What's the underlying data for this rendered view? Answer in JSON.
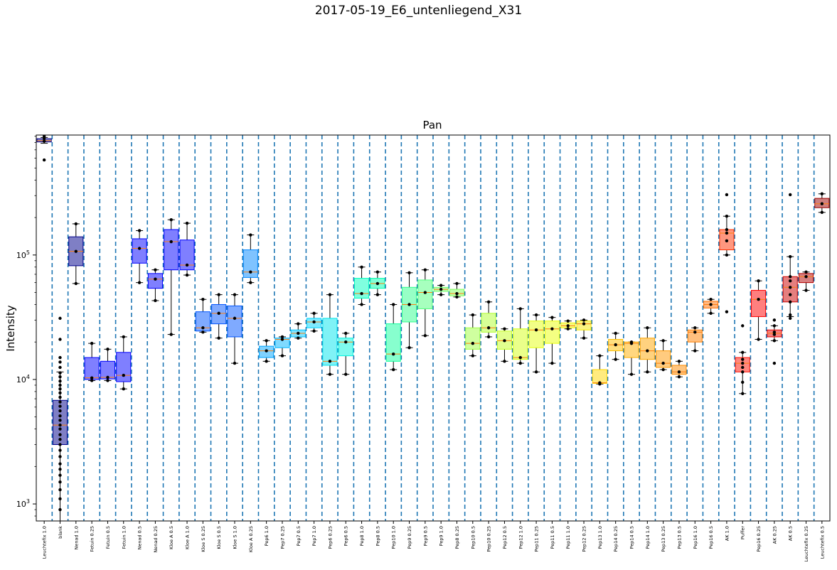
{
  "figure": {
    "suptitle": "2017-05-19_E6_untenliegend_X31"
  },
  "chart_data": {
    "type": "box",
    "title": "Pan",
    "ylabel": "Intensity",
    "xlabel": "",
    "yscale": "log",
    "ylim": [
      730,
      920000
    ],
    "y_tick_labels": [
      "10^3",
      "10^4",
      "10^5"
    ],
    "y_ticks": [
      1000,
      10000,
      100000
    ],
    "grid": false,
    "separators": "dashed vertical lines between categories",
    "separator_color": "#1f77b4",
    "median_color": "#ff7f0e",
    "categories": [
      {
        "label": "Leuchtefix 1.0",
        "color": "#00008b",
        "q1": 810000,
        "med": 830000,
        "q3": 860000,
        "wlo": 790000,
        "whi": 880000,
        "points": [
          580000,
          820000,
          860000,
          900000
        ]
      },
      {
        "label": "blank",
        "color": "#00008b",
        "q1": 3000,
        "med": 4300,
        "q3": 6800,
        "wlo": 730,
        "whi": 11500,
        "points": [
          900,
          1100,
          1300,
          1500,
          1700,
          1900,
          2100,
          2400,
          2700,
          3000,
          3300,
          3600,
          4000,
          4300,
          4700,
          5100,
          5600,
          6100,
          6600,
          7200,
          7800,
          8400,
          9000,
          9700,
          10500,
          11300,
          12500,
          13800,
          15000,
          21000,
          31000
        ]
      },
      {
        "label": "Nenad 1.0",
        "color": "#00008b",
        "q1": 82000,
        "med": 107000,
        "q3": 140000,
        "wlo": 59000,
        "whi": 178000,
        "points": [
          59000,
          107000,
          178000
        ]
      },
      {
        "label": "Fetuin 0.25",
        "color": "#0000ff",
        "q1": 10000,
        "med": 10300,
        "q3": 15000,
        "wlo": 9800,
        "whi": 19500,
        "points": [
          9800,
          10300,
          19500
        ]
      },
      {
        "label": "Fetuin 0.5",
        "color": "#0000ff",
        "q1": 10100,
        "med": 10400,
        "q3": 14000,
        "wlo": 9800,
        "whi": 17500,
        "points": [
          9800,
          10400,
          17500
        ]
      },
      {
        "label": "Fetuin 1.0",
        "color": "#0000ff",
        "q1": 9600,
        "med": 10800,
        "q3": 16500,
        "wlo": 8400,
        "whi": 22000,
        "points": [
          8400,
          10800,
          22000
        ]
      },
      {
        "label": "Nenad 0.5",
        "color": "#0000ff",
        "q1": 86000,
        "med": 113000,
        "q3": 135000,
        "wlo": 60000,
        "whi": 157000,
        "points": [
          60000,
          113000,
          157000
        ]
      },
      {
        "label": "Nenad 0.25",
        "color": "#0000ff",
        "q1": 54000,
        "med": 64000,
        "q3": 71000,
        "wlo": 43000,
        "whi": 76000,
        "points": [
          43000,
          64000,
          76000
        ]
      },
      {
        "label": "Kloe A 0.5",
        "color": "#0000ff",
        "q1": 76000,
        "med": 128000,
        "q3": 160000,
        "wlo": 23000,
        "whi": 192000,
        "points": [
          23000,
          128000,
          192000
        ]
      },
      {
        "label": "Kloe A 1.0",
        "color": "#0000ff",
        "q1": 76000,
        "med": 83000,
        "q3": 132000,
        "wlo": 69000,
        "whi": 180000,
        "points": [
          69000,
          83000,
          180000
        ]
      },
      {
        "label": "Kloe S 0.25",
        "color": "#0055ff",
        "q1": 24500,
        "med": 26000,
        "q3": 35000,
        "wlo": 24000,
        "whi": 44000,
        "points": [
          24000,
          26000,
          44000
        ]
      },
      {
        "label": "Kloe S 0.5",
        "color": "#0055ff",
        "q1": 28000,
        "med": 34000,
        "q3": 40000,
        "wlo": 21500,
        "whi": 48000,
        "points": [
          21500,
          34000,
          48000
        ]
      },
      {
        "label": "Kloe S 1.0",
        "color": "#0055ff",
        "q1": 22000,
        "med": 31000,
        "q3": 39000,
        "wlo": 13500,
        "whi": 48000,
        "points": [
          13500,
          31000,
          48000
        ]
      },
      {
        "label": "Kloe A 0.25",
        "color": "#0088ff",
        "q1": 66000,
        "med": 73000,
        "q3": 110000,
        "wlo": 60000,
        "whi": 145000,
        "points": [
          60000,
          73000,
          145000
        ]
      },
      {
        "label": "Pep6 1.0",
        "color": "#00a5ff",
        "q1": 15000,
        "med": 17000,
        "q3": 18500,
        "wlo": 14000,
        "whi": 20500,
        "points": [
          14000,
          17000,
          20500
        ]
      },
      {
        "label": "Pep7 0.25",
        "color": "#00b5ff",
        "q1": 18000,
        "med": 21000,
        "q3": 21500,
        "wlo": 15500,
        "whi": 22000,
        "points": [
          15500,
          21000,
          22000
        ]
      },
      {
        "label": "Pep7 0.5",
        "color": "#00c5ff",
        "q1": 22000,
        "med": 23500,
        "q3": 25000,
        "wlo": 21500,
        "whi": 28000,
        "points": [
          21500,
          23500,
          28000
        ]
      },
      {
        "label": "Pep7 1.0",
        "color": "#00d5ff",
        "q1": 26000,
        "med": 29000,
        "q3": 31000,
        "wlo": 24500,
        "whi": 34000,
        "points": [
          24500,
          29000,
          34000
        ]
      },
      {
        "label": "Pep6 0.25",
        "color": "#00e5ee",
        "q1": 13000,
        "med": 14000,
        "q3": 31000,
        "wlo": 11000,
        "whi": 48000,
        "points": [
          11000,
          14000,
          48000
        ]
      },
      {
        "label": "Pep6 0.5",
        "color": "#00f5e0",
        "q1": 15500,
        "med": 20000,
        "q3": 21500,
        "wlo": 11000,
        "whi": 23500,
        "points": [
          11000,
          20000,
          23500
        ]
      },
      {
        "label": "Pep8 1.0",
        "color": "#00ffc0",
        "q1": 45000,
        "med": 49000,
        "q3": 65000,
        "wlo": 40000,
        "whi": 80000,
        "points": [
          40000,
          49000,
          80000
        ]
      },
      {
        "label": "Pep8 0.5",
        "color": "#00ffb0",
        "q1": 54000,
        "med": 59000,
        "q3": 65000,
        "wlo": 48000,
        "whi": 73000,
        "points": [
          48000,
          59000,
          73000
        ]
      },
      {
        "label": "Pep10 1.0",
        "color": "#10ff9e",
        "q1": 14000,
        "med": 16000,
        "q3": 28000,
        "wlo": 12000,
        "whi": 40000,
        "points": [
          12000,
          16000,
          40000
        ]
      },
      {
        "label": "Pep9 0.25",
        "color": "#30ff8e",
        "q1": 29000,
        "med": 40000,
        "q3": 55000,
        "wlo": 18000,
        "whi": 72000,
        "points": [
          18000,
          40000,
          72000
        ]
      },
      {
        "label": "Pep9 0.5",
        "color": "#50ff7e",
        "q1": 37000,
        "med": 50000,
        "q3": 63000,
        "wlo": 22500,
        "whi": 76000,
        "points": [
          22500,
          50000,
          76000
        ]
      },
      {
        "label": "Pep9 1.0",
        "color": "#70ff6e",
        "q1": 51000,
        "med": 53000,
        "q3": 55000,
        "wlo": 48000,
        "whi": 57000,
        "points": [
          48000,
          53000,
          57000
        ]
      },
      {
        "label": "Pep8 0.25",
        "color": "#80ff5e",
        "q1": 47000,
        "med": 49000,
        "q3": 53000,
        "wlo": 46000,
        "whi": 59000,
        "points": [
          46000,
          49000,
          59000
        ]
      },
      {
        "label": "Pep10 0.5",
        "color": "#a0ff40",
        "q1": 17500,
        "med": 19500,
        "q3": 26000,
        "wlo": 15500,
        "whi": 33000,
        "points": [
          15500,
          19500,
          33000
        ]
      },
      {
        "label": "Pep10 0.25",
        "color": "#b0ff30",
        "q1": 24000,
        "med": 26000,
        "q3": 34000,
        "wlo": 22000,
        "whi": 42000,
        "points": [
          22000,
          26000,
          42000
        ]
      },
      {
        "label": "Pep12 0.5",
        "color": "#c5ff20",
        "q1": 17500,
        "med": 20500,
        "q3": 24500,
        "wlo": 14000,
        "whi": 25500,
        "points": [
          14000,
          20500,
          25500
        ]
      },
      {
        "label": "Pep12 1.0",
        "color": "#d5ff15",
        "q1": 14500,
        "med": 15000,
        "q3": 25500,
        "wlo": 13500,
        "whi": 37000,
        "points": [
          13500,
          15000,
          37000
        ]
      },
      {
        "label": "Pep11 0.25",
        "color": "#e5ff10",
        "q1": 18000,
        "med": 25000,
        "q3": 29500,
        "wlo": 11500,
        "whi": 33000,
        "points": [
          11500,
          25000,
          33000
        ]
      },
      {
        "label": "Pep11 0.5",
        "color": "#eaff05",
        "q1": 19500,
        "med": 25500,
        "q3": 29500,
        "wlo": 13500,
        "whi": 31500,
        "points": [
          13500,
          25500,
          31500
        ]
      },
      {
        "label": "Pep11 1.0",
        "color": "#f0f500",
        "q1": 26000,
        "med": 27000,
        "q3": 28500,
        "wlo": 25500,
        "whi": 29500,
        "points": [
          25500,
          27000,
          29500
        ]
      },
      {
        "label": "Pep12 0.25",
        "color": "#f5e800",
        "q1": 25000,
        "med": 28000,
        "q3": 29500,
        "wlo": 21500,
        "whi": 30000,
        "points": [
          21500,
          28000,
          30000
        ]
      },
      {
        "label": "Pep13 1.0",
        "color": "#ffd700",
        "q1": 9300,
        "med": 9400,
        "q3": 12000,
        "wlo": 9200,
        "whi": 15500,
        "points": [
          9200,
          9400,
          15500
        ]
      },
      {
        "label": "Pep14 0.25",
        "color": "#ffc000",
        "q1": 17000,
        "med": 19000,
        "q3": 21000,
        "wlo": 14500,
        "whi": 23500,
        "points": [
          14500,
          19000,
          23500
        ]
      },
      {
        "label": "Pep14 0.5",
        "color": "#ffb000",
        "q1": 15000,
        "med": 19500,
        "q3": 20000,
        "wlo": 11000,
        "whi": 20000,
        "points": [
          11000,
          19500,
          20000
        ]
      },
      {
        "label": "Pep14 1.0",
        "color": "#ffa500",
        "q1": 14500,
        "med": 17000,
        "q3": 21500,
        "wlo": 11500,
        "whi": 26000,
        "points": [
          11500,
          17000,
          26000
        ]
      },
      {
        "label": "Pep13 0.25",
        "color": "#ff9800",
        "q1": 12500,
        "med": 13500,
        "q3": 17000,
        "wlo": 12000,
        "whi": 20500,
        "points": [
          12000,
          13500,
          20500
        ]
      },
      {
        "label": "Pep13 0.5",
        "color": "#ff8c00",
        "q1": 11000,
        "med": 11500,
        "q3": 13000,
        "wlo": 10500,
        "whi": 14000,
        "points": [
          10500,
          11500,
          14000
        ]
      },
      {
        "label": "Pep16 1.0",
        "color": "#ff7f00",
        "q1": 20000,
        "med": 24000,
        "q3": 25000,
        "wlo": 17000,
        "whi": 26000,
        "points": [
          17000,
          24000,
          26000
        ]
      },
      {
        "label": "Pep16 0.5",
        "color": "#ff6f00",
        "q1": 37500,
        "med": 40000,
        "q3": 42500,
        "wlo": 34000,
        "whi": 44000,
        "points": [
          34000,
          40000,
          44000
        ]
      },
      {
        "label": "AK 1.0",
        "color": "#ff3000",
        "q1": 110000,
        "med": 150000,
        "q3": 160000,
        "wlo": 100000,
        "whi": 205000,
        "points": [
          35000,
          100000,
          130000,
          150000,
          160000,
          205000,
          305000
        ]
      },
      {
        "label": "Puffer",
        "color": "#ff1000",
        "q1": 11500,
        "med": 13500,
        "q3": 15000,
        "wlo": 7700,
        "whi": 16500,
        "points": [
          7700,
          9500,
          11500,
          12500,
          13500,
          14500,
          16500,
          27000
        ]
      },
      {
        "label": "Pep16 0.25",
        "color": "#ff0000",
        "q1": 32000,
        "med": 44000,
        "q3": 52000,
        "wlo": 21000,
        "whi": 62000,
        "points": [
          21000,
          44000,
          62000
        ]
      },
      {
        "label": "AK 0.25",
        "color": "#e80000",
        "q1": 22000,
        "med": 23500,
        "q3": 25000,
        "wlo": 20500,
        "whi": 27000,
        "points": [
          13500,
          20500,
          23000,
          24000,
          27000,
          30000
        ]
      },
      {
        "label": "AK 0.5",
        "color": "#cc0000",
        "q1": 42000,
        "med": 55000,
        "q3": 67000,
        "wlo": 32000,
        "whi": 97000,
        "points": [
          31000,
          33000,
          42000,
          48000,
          55000,
          62000,
          67000,
          97000,
          305000
        ]
      },
      {
        "label": "Leuchtefix 0.25",
        "color": "#b00000",
        "q1": 60000,
        "med": 67000,
        "q3": 71000,
        "wlo": 52000,
        "whi": 73000,
        "points": [
          52000,
          67000,
          73000
        ]
      },
      {
        "label": "Leuchtefix 0.5",
        "color": "#9b0000",
        "q1": 240000,
        "med": 258000,
        "q3": 285000,
        "wlo": 220000,
        "whi": 310000,
        "points": [
          220000,
          258000,
          310000
        ]
      }
    ]
  }
}
